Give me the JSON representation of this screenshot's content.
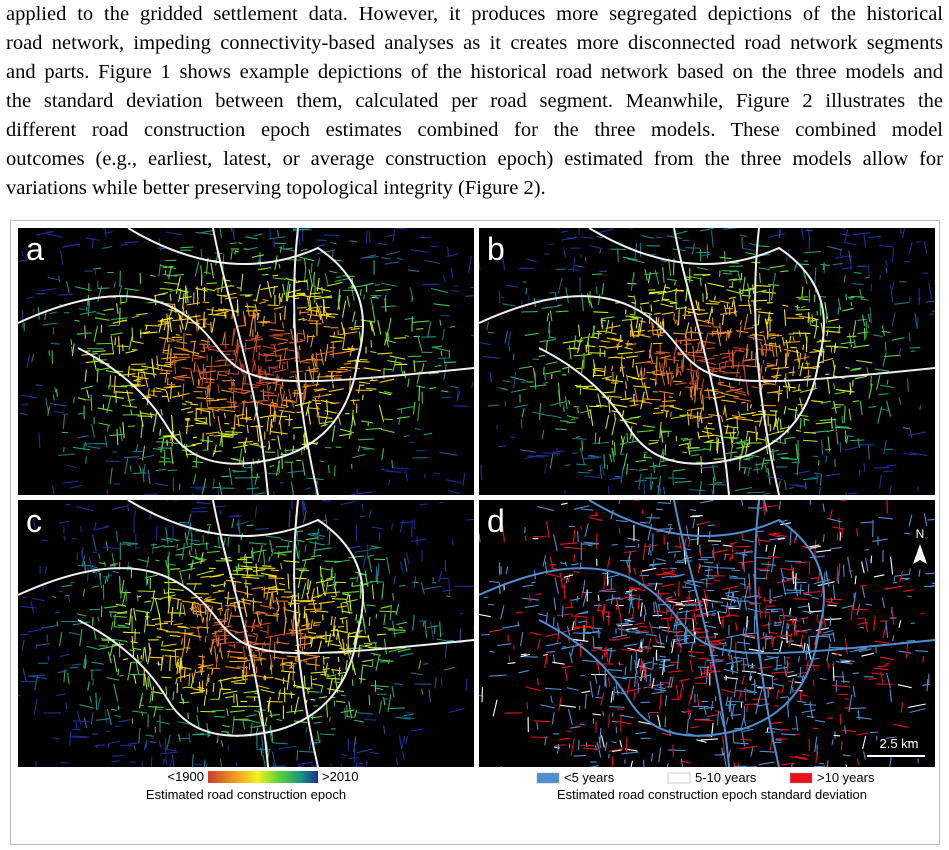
{
  "paragraph": {
    "lines": [
      "applied to the gridded settlement data. However, it produces more segregated depictions of the historical",
      "road network, impeding connectivity-based analyses as it creates more disconnected road network segments",
      "and parts. Figure 1 shows example depictions of the historical road network based on the three models and",
      "the standard deviation between them, calculated per road segment. Meanwhile, Figure 2 illustrates the",
      "different road construction epoch estimates combined for the three models. These combined model",
      "outcomes (e.g., earliest, latest, or average construction epoch) estimated from the three models allow for",
      "variations while better preserving topological integrity (Figure 2)."
    ]
  },
  "figure": {
    "panels": [
      {
        "label": "a"
      },
      {
        "label": "b"
      },
      {
        "label": "c"
      },
      {
        "label": "d"
      }
    ],
    "north_label": "N",
    "scale_label": "2.5 km",
    "legend_epoch": {
      "min_label": "<1900",
      "max_label": ">2010",
      "title": "Estimated road construction epoch"
    },
    "legend_sd": {
      "title": "Estimated road construction epoch standard deviation",
      "items": [
        {
          "label": "<5 years",
          "color": "#4f8fd0"
        },
        {
          "label": "5-10 years",
          "color": "#ffffff"
        },
        {
          "label": ">10 years",
          "color": "#e8101a"
        }
      ]
    }
  }
}
